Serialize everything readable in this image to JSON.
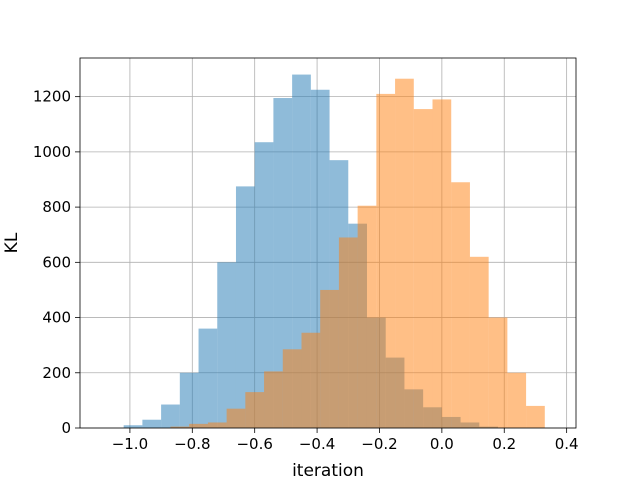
{
  "chart_data": {
    "type": "histogram",
    "xlabel": "iteration",
    "ylabel": "KL",
    "xlim": [
      -1.16,
      0.43
    ],
    "ylim": [
      0,
      1340
    ],
    "x_ticks": [
      -1.0,
      -0.8,
      -0.6,
      -0.4,
      -0.2,
      0.0,
      0.2,
      0.4
    ],
    "x_tick_labels": [
      "−1.0",
      "−0.8",
      "−0.6",
      "−0.4",
      "−0.2",
      "0.0",
      "0.2",
      "0.4"
    ],
    "y_ticks": [
      0,
      200,
      400,
      600,
      800,
      1000,
      1200
    ],
    "y_tick_labels": [
      "0",
      "200",
      "400",
      "600",
      "800",
      "1000",
      "1200"
    ],
    "grid": true,
    "legend": "none",
    "series": [
      {
        "color": "#1f77b4",
        "opacity": 0.5,
        "bin_edges": [
          -1.02,
          -0.96,
          -0.9,
          -0.84,
          -0.78,
          -0.72,
          -0.66,
          -0.6,
          -0.54,
          -0.48,
          -0.42,
          -0.36,
          -0.3,
          -0.24,
          -0.18,
          -0.12,
          -0.06,
          0.0,
          0.06,
          0.12,
          0.18
        ],
        "counts": [
          10,
          30,
          85,
          200,
          360,
          600,
          875,
          1035,
          1195,
          1280,
          1225,
          970,
          740,
          400,
          255,
          140,
          75,
          40,
          20,
          5
        ]
      },
      {
        "color": "#ff7f0e",
        "opacity": 0.5,
        "bin_edges": [
          -0.87,
          -0.81,
          -0.75,
          -0.69,
          -0.63,
          -0.57,
          -0.51,
          -0.45,
          -0.39,
          -0.33,
          -0.27,
          -0.21,
          -0.15,
          -0.09,
          -0.03,
          0.03,
          0.09,
          0.15,
          0.21,
          0.27,
          0.33
        ],
        "counts": [
          5,
          15,
          20,
          70,
          130,
          205,
          285,
          345,
          500,
          690,
          805,
          1210,
          1265,
          1155,
          1190,
          890,
          620,
          400,
          200,
          80
        ]
      }
    ]
  }
}
